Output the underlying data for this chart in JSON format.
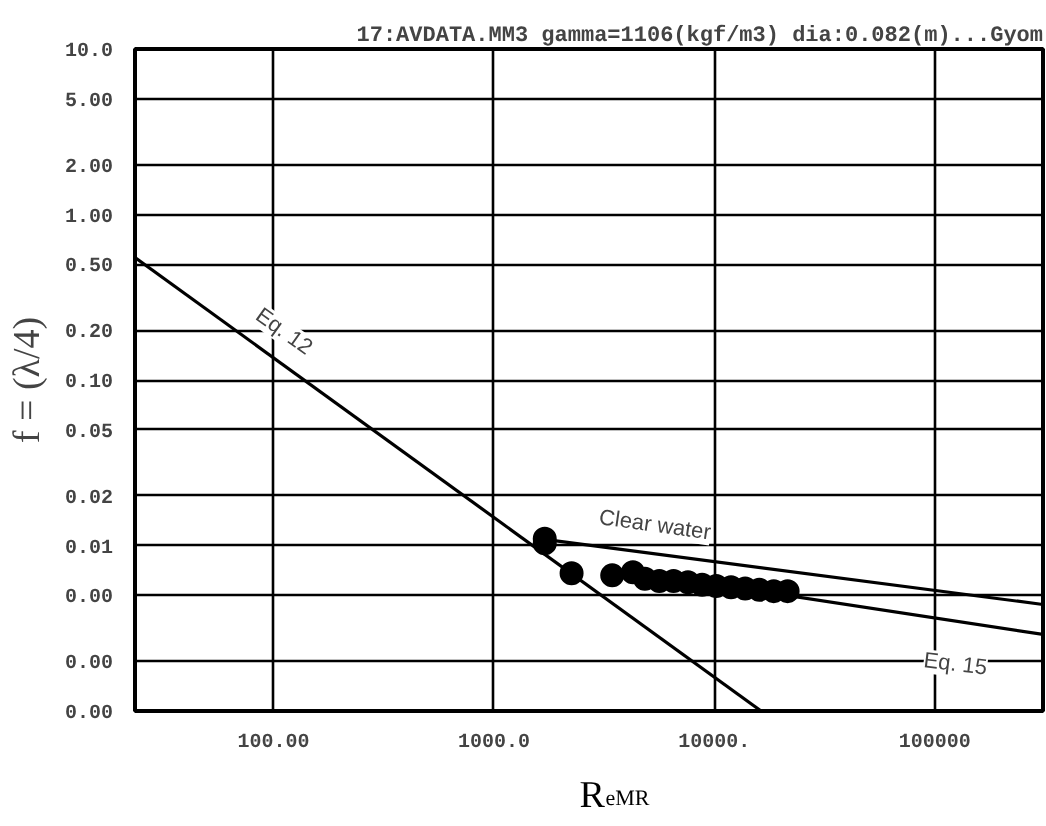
{
  "chart_data": {
    "type": "scatter",
    "title": "17:AVDATA.MM3 gamma=1106(kgf/m3) dia:0.082(m)...Gyom",
    "xlabel": "R$_{eMR}$",
    "ylabel": "f = (λ/4)",
    "log": "xy",
    "grid": true,
    "xlim": [
      23.5,
      310000
    ],
    "ylim": [
      0.001,
      10
    ],
    "xticks": [
      {
        "value": 100,
        "label": "100.00"
      },
      {
        "value": 1000,
        "label": "1000.0"
      },
      {
        "value": 10000,
        "label": "10000."
      },
      {
        "value": 100000,
        "label": "100000"
      }
    ],
    "yticks": [
      {
        "value": 10,
        "label": "10.0"
      },
      {
        "value": 5,
        "label": "5.00"
      },
      {
        "value": 2,
        "label": "2.00"
      },
      {
        "value": 1,
        "label": "1.00"
      },
      {
        "value": 0.5,
        "label": "0.50"
      },
      {
        "value": 0.2,
        "label": "0.20"
      },
      {
        "value": 0.1,
        "label": "0.10"
      },
      {
        "value": 0.05,
        "label": "0.05"
      },
      {
        "value": 0.02,
        "label": "0.02"
      },
      {
        "value": 0.01,
        "label": "0.01"
      },
      {
        "value": 0.005,
        "label": "0.00"
      },
      {
        "value": 0.002,
        "label": "0.00"
      },
      {
        "value": 0.001,
        "label": "0.00"
      }
    ],
    "series": [
      {
        "type": "line",
        "color": "#000000",
        "x": [
          23.5,
          16300
        ],
        "values": [
          0.55,
          0.001
        ]
      },
      {
        "type": "line",
        "color": "#000000",
        "x": [
          1600,
          310000
        ],
        "values": [
          0.011,
          0.0044
        ]
      },
      {
        "type": "line",
        "color": "#000000",
        "x": [
          4350,
          310000
        ],
        "values": [
          0.0069,
          0.0029
        ]
      },
      {
        "marker": "circle",
        "color": "#000000",
        "x": [
          1700,
          1700,
          2250,
          3440,
          4270,
          4840,
          5630,
          6530,
          7590,
          8800,
          10200,
          11900,
          13800,
          16000,
          18600,
          21500
        ],
        "values": [
          0.0103,
          0.011,
          0.0068,
          0.0066,
          0.0069,
          0.0063,
          0.0061,
          0.0061,
          0.006,
          0.0058,
          0.0057,
          0.0056,
          0.0055,
          0.0054,
          0.0053,
          0.0053
        ]
      }
    ],
    "annotations": [
      {
        "text": "Eq. 12",
        "x": 111,
        "y": 0.195
      },
      "Clear water",
      {
        "text": "Eq. 15",
        "x": 124000,
        "y": 0.0019
      }
    ]
  }
}
